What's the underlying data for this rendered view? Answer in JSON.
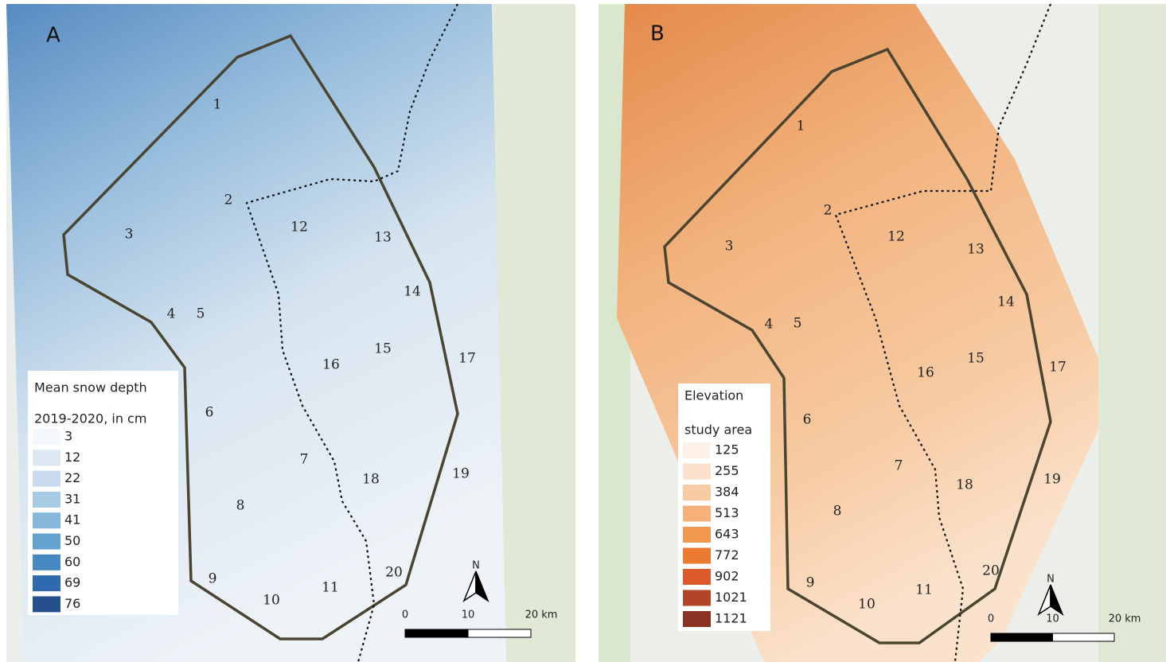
{
  "panels": [
    {
      "label": "A",
      "legend": {
        "title": "Mean snow depth",
        "subtitle": "2019-2020, in cm",
        "entries": [
          {
            "value": 3,
            "color": "#f4f8fc"
          },
          {
            "value": 12,
            "color": "#dde8f3"
          },
          {
            "value": 22,
            "color": "#c8dcee"
          },
          {
            "value": 31,
            "color": "#a8cbe4"
          },
          {
            "value": 41,
            "color": "#86b7db"
          },
          {
            "value": 50,
            "color": "#64a2d0"
          },
          {
            "value": 60,
            "color": "#4588c2"
          },
          {
            "value": 69,
            "color": "#2f6aaf"
          },
          {
            "value": 76,
            "color": "#264f8c"
          }
        ]
      },
      "sites": [
        "1",
        "2",
        "3",
        "4",
        "5",
        "6",
        "7",
        "8",
        "9",
        "10",
        "11",
        "12",
        "13",
        "14",
        "15",
        "16",
        "17",
        "18",
        "19",
        "20"
      ],
      "scale_bar": [
        "0",
        "10",
        "20 km"
      ],
      "north": "N"
    },
    {
      "label": "B",
      "legend": {
        "title": "Elevation",
        "subtitle": "study area",
        "entries": [
          {
            "value": 125,
            "color": "#fdf1e8"
          },
          {
            "value": 255,
            "color": "#fce0cc"
          },
          {
            "value": 384,
            "color": "#f9cba5"
          },
          {
            "value": 513,
            "color": "#f6b17a"
          },
          {
            "value": 643,
            "color": "#f2974e"
          },
          {
            "value": 772,
            "color": "#ec7a30"
          },
          {
            "value": 902,
            "color": "#dd5a2b"
          },
          {
            "value": 1021,
            "color": "#b24427"
          },
          {
            "value": 1121,
            "color": "#8a3322"
          }
        ]
      },
      "sites": [
        "1",
        "2",
        "3",
        "4",
        "5",
        "6",
        "7",
        "8",
        "9",
        "10",
        "11",
        "12",
        "13",
        "14",
        "15",
        "16",
        "17",
        "18",
        "19",
        "20"
      ],
      "scale_bar": [
        "0",
        "10",
        "20 km"
      ],
      "north": "N"
    }
  ]
}
